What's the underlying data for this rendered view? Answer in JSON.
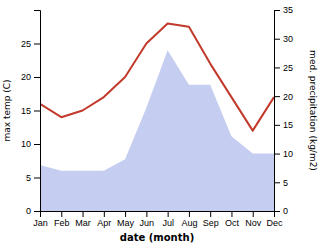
{
  "chart_data": {
    "type": "line",
    "categories": [
      "Jan",
      "Feb",
      "Mar",
      "Apr",
      "May",
      "Jun",
      "Jul",
      "Aug",
      "Sep",
      "Oct",
      "Nov",
      "Dec"
    ],
    "series": [
      {
        "type": "area",
        "axis": "y2",
        "color": "#c5cef0",
        "values": [
          8.0,
          7.0,
          7.0,
          7.0,
          9.0,
          18.0,
          28.0,
          22.0,
          22.0,
          13.0,
          10.0,
          10.0
        ]
      },
      {
        "type": "line",
        "color": "#c0392b",
        "values": [
          16.0,
          14.0,
          15.0,
          17.0,
          20.0,
          25.0,
          28.0,
          27.5,
          22.0,
          17.0,
          12.0,
          17.0
        ]
      }
    ],
    "xlabel": "date (month)",
    "ylabel": "max temp (C)",
    "y2label": "med. precipitation (kg/m2)",
    "ylim": [
      0,
      30
    ],
    "yticks": [
      0,
      5,
      10,
      15,
      20,
      25
    ],
    "y2lim": [
      0,
      35
    ],
    "y2ticks": [
      0,
      5,
      10,
      15,
      20,
      25,
      30,
      35
    ],
    "grid": false
  }
}
